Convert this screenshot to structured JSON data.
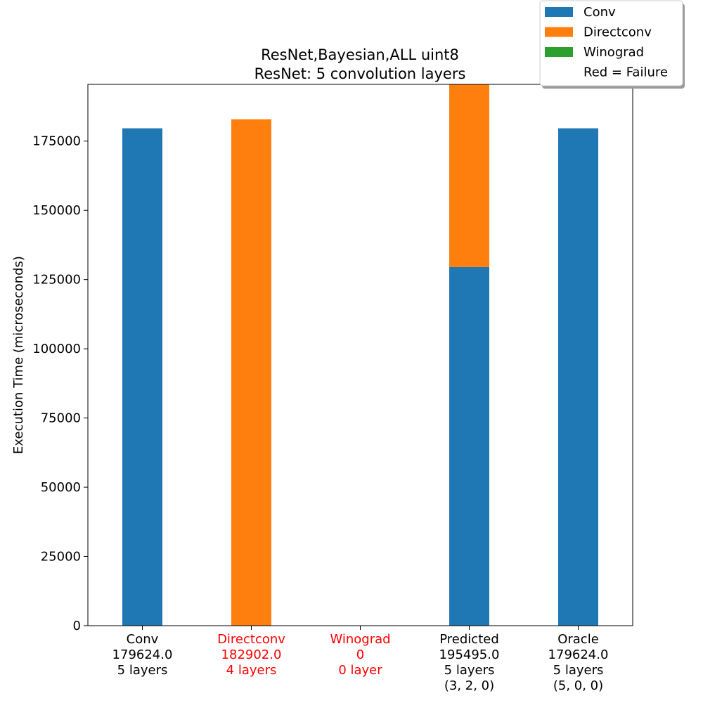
{
  "colors": {
    "conv": "#1f77b4",
    "directconv": "#ff7f0e",
    "winograd": "#2ca02c",
    "failure": "#ff0000",
    "axis": "#000000"
  },
  "chart_data": {
    "type": "bar",
    "stacked": true,
    "title": "ResNet,Bayesian,ALL uint8",
    "subtitle": "ResNet: 5 convolution layers",
    "xlabel": "",
    "ylabel": "Execution Time (microseconds)",
    "ylim": [
      0,
      195495
    ],
    "y_ticks": [
      0,
      25000,
      50000,
      75000,
      100000,
      125000,
      150000,
      175000
    ],
    "grid": false,
    "legend_position": "top-right",
    "legend": [
      {
        "label": "Conv",
        "color": "#1f77b4"
      },
      {
        "label": "Directconv",
        "color": "#ff7f0e"
      },
      {
        "label": "Winograd",
        "color": "#2ca02c"
      },
      {
        "label": "Red = Failure",
        "color": ""
      }
    ],
    "categories": [
      {
        "lines": [
          "Conv",
          "179624.0",
          "5 layers"
        ],
        "failure": false
      },
      {
        "lines": [
          "Directconv",
          "182902.0",
          "4 layers"
        ],
        "failure": true
      },
      {
        "lines": [
          "Winograd",
          "0",
          "0 layer"
        ],
        "failure": true
      },
      {
        "lines": [
          "Predicted",
          "195495.0",
          "5 layers",
          "(3, 2, 0)"
        ],
        "failure": false
      },
      {
        "lines": [
          "Oracle",
          "179624.0",
          "5 layers",
          "(5, 0, 0)"
        ],
        "failure": false
      }
    ],
    "series": [
      {
        "name": "Conv",
        "color": "#1f77b4",
        "values": [
          179624,
          0,
          0,
          129500,
          179624
        ]
      },
      {
        "name": "Directconv",
        "color": "#ff7f0e",
        "values": [
          0,
          182902,
          0,
          65995,
          0
        ]
      },
      {
        "name": "Winograd",
        "color": "#2ca02c",
        "values": [
          0,
          0,
          0,
          0,
          0
        ]
      }
    ]
  }
}
